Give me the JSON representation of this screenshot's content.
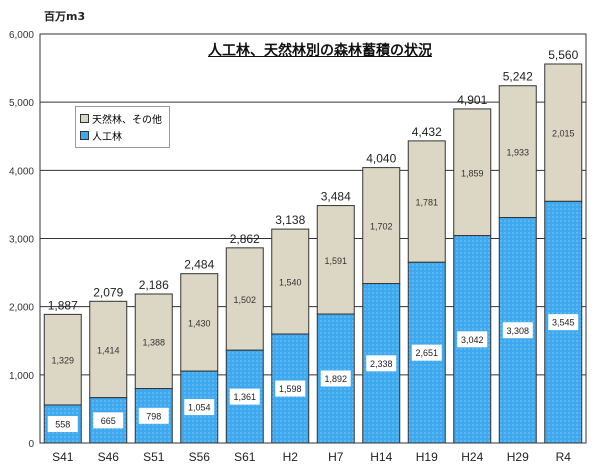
{
  "chart_data": {
    "type": "bar",
    "stacked": true,
    "title": "人工林、天然林別の森林蓄積の状況",
    "ylabel": "百万m3",
    "ylim": [
      0,
      6000
    ],
    "yticks": [
      "0",
      "1,000",
      "2,000",
      "3,000",
      "4,000",
      "5,000",
      "6,000"
    ],
    "grid": true,
    "legend_placement": "top-left",
    "categories": [
      "S41",
      "S46",
      "S51",
      "S56",
      "S61",
      "H2",
      "H7",
      "H14",
      "H19",
      "H24",
      "H29",
      "R4"
    ],
    "series": [
      {
        "name": "人工林",
        "color": "#3fa9f0",
        "values": [
          558,
          665,
          798,
          1054,
          1361,
          1598,
          1892,
          2338,
          2651,
          3042,
          3308,
          3545
        ],
        "labels": [
          "558",
          "665",
          "798",
          "1,054",
          "1,361",
          "1,598",
          "1,892",
          "2,338",
          "2,651",
          "3,042",
          "3,308",
          "3,545"
        ]
      },
      {
        "name": "天然林、その他",
        "color": "#dcd7c4",
        "values": [
          1329,
          1414,
          1388,
          1430,
          1502,
          1540,
          1591,
          1702,
          1781,
          1859,
          1933,
          2015
        ],
        "labels": [
          "1,329",
          "1,414",
          "1,388",
          "1,430",
          "1,502",
          "1,540",
          "1,591",
          "1,702",
          "1,781",
          "1,859",
          "1,933",
          "2,015"
        ]
      }
    ],
    "totals": [
      1887,
      2079,
      2186,
      2484,
      2862,
      3138,
      3484,
      4040,
      4432,
      4901,
      5242,
      5560
    ],
    "total_labels": [
      "1,887",
      "2,079",
      "2,186",
      "2,484",
      "2,862",
      "3,138",
      "3,484",
      "4,040",
      "4,432",
      "4,901",
      "5,242",
      "5,560"
    ]
  }
}
